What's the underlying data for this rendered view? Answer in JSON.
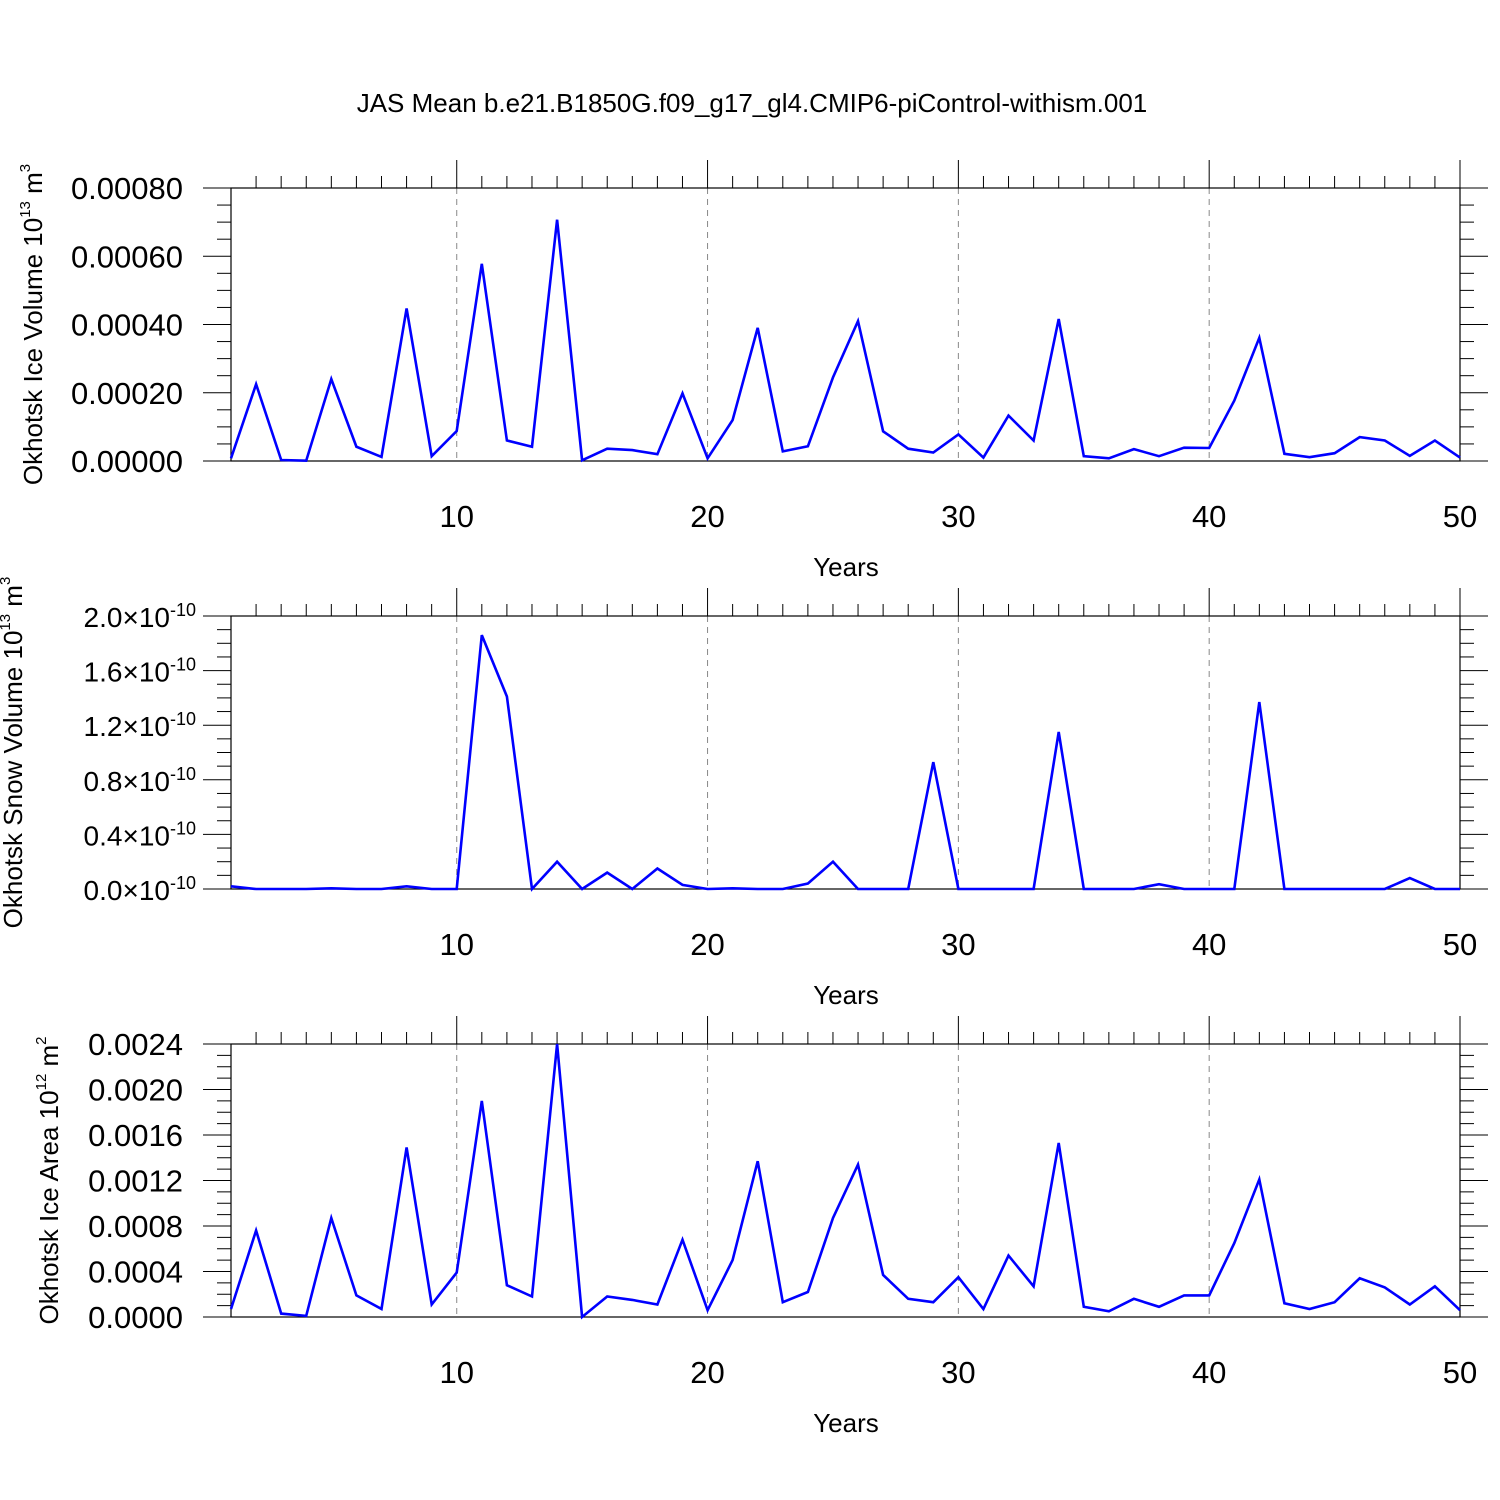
{
  "title": "JAS Mean b.e21.B1850G.f09_g17_gl4.CMIP6-piControl-withism.001",
  "colors": {
    "line": "#0000ff",
    "axis": "#000000",
    "grid": "#888888"
  },
  "chart_data": [
    {
      "type": "line",
      "xlabel": "Years",
      "ylabel_main": "Okhotsk Ice Volume 10",
      "ylabel_sup": "13",
      "ylabel_unit": " m",
      "ylabel_unit_sup": "3",
      "xlim": [
        1,
        50
      ],
      "ylim": [
        0,
        0.0008
      ],
      "x_ticks": [
        "10",
        "20",
        "30",
        "40",
        "50"
      ],
      "y_ticks": [
        "0.00000",
        "0.00020",
        "0.00040",
        "0.00060",
        "0.00080"
      ],
      "grid": "vertical dashed at major x ticks",
      "series": [
        {
          "x": [
            1,
            2,
            3,
            4,
            5,
            6,
            7,
            8,
            9,
            10,
            11,
            12,
            13,
            14,
            15,
            16,
            17,
            18,
            19,
            20,
            21,
            22,
            23,
            24,
            25,
            26,
            27,
            28,
            29,
            30,
            31,
            32,
            33,
            34,
            35,
            36,
            37,
            38,
            39,
            40,
            41,
            42,
            43,
            44,
            45,
            46,
            47,
            48,
            49,
            50
          ],
          "values": [
            8e-06,
            0.000225,
            3e-06,
            1e-06,
            0.00024,
            4.2e-05,
            1.2e-05,
            0.000447,
            1.4e-05,
            8.8e-05,
            0.000578,
            6e-05,
            4.2e-05,
            0.000707,
            2e-06,
            3.6e-05,
            3.2e-05,
            2e-05,
            0.000198,
            8e-06,
            0.00012,
            0.00039,
            2.8e-05,
            4.3e-05,
            0.000245,
            0.00041,
            8.7e-05,
            3.6e-05,
            2.5e-05,
            7.8e-05,
            1e-05,
            0.000133,
            6e-05,
            0.000416,
            1.4e-05,
            8e-06,
            3.5e-05,
            1.4e-05,
            3.9e-05,
            3.8e-05,
            0.000177,
            0.000361,
            2.1e-05,
            1.1e-05,
            2.3e-05,
            7e-05,
            6e-05,
            1.5e-05,
            6e-05,
            1e-05
          ]
        }
      ]
    },
    {
      "type": "line",
      "xlabel": "Years",
      "ylabel_main": "Okhotsk Snow Volume 10",
      "ylabel_sup": "13",
      "ylabel_unit": " m",
      "ylabel_unit_sup": "3",
      "xlim": [
        1,
        50
      ],
      "ylim": [
        0,
        2e-10
      ],
      "x_ticks": [
        "10",
        "20",
        "30",
        "40",
        "50"
      ],
      "y_ticks": [
        "0.0",
        "0.4",
        "0.8",
        "1.2",
        "1.6",
        "2.0"
      ],
      "y_tick_suffix": "×10",
      "y_tick_exponent": "-10",
      "grid": "vertical dashed at major x ticks",
      "series": [
        {
          "x": [
            1,
            2,
            3,
            4,
            5,
            6,
            7,
            8,
            9,
            10,
            11,
            12,
            13,
            14,
            15,
            16,
            17,
            18,
            19,
            20,
            21,
            22,
            23,
            24,
            25,
            26,
            27,
            28,
            29,
            30,
            31,
            32,
            33,
            34,
            35,
            36,
            37,
            38,
            39,
            40,
            41,
            42,
            43,
            44,
            45,
            46,
            47,
            48,
            49,
            50
          ],
          "values": [
            2e-12,
            0,
            0,
            0,
            5e-13,
            0,
            0,
            2e-12,
            0,
            0,
            1.86e-10,
            1.41e-10,
            0,
            2e-11,
            0,
            1.2e-11,
            0,
            1.5e-11,
            3e-12,
            0,
            5e-13,
            0,
            0,
            4e-12,
            2e-11,
            0,
            0,
            0,
            9.3e-11,
            0,
            0,
            0,
            0,
            1.15e-10,
            0,
            0,
            0,
            3.5e-12,
            0,
            0,
            0,
            1.37e-10,
            0,
            0,
            0,
            0,
            0,
            8e-12,
            0,
            0
          ]
        }
      ]
    },
    {
      "type": "line",
      "xlabel": "Years",
      "ylabel_main": "Okhotsk Ice Area 10",
      "ylabel_sup": "12",
      "ylabel_unit": " m",
      "ylabel_unit_sup": "2",
      "xlim": [
        1,
        50
      ],
      "ylim": [
        0,
        0.0024
      ],
      "x_ticks": [
        "10",
        "20",
        "30",
        "40",
        "50"
      ],
      "y_ticks": [
        "0.0000",
        "0.0004",
        "0.0008",
        "0.0012",
        "0.0016",
        "0.0020",
        "0.0024"
      ],
      "grid": "vertical dashed at major x ticks",
      "series": [
        {
          "x": [
            1,
            2,
            3,
            4,
            5,
            6,
            7,
            8,
            9,
            10,
            11,
            12,
            13,
            14,
            15,
            16,
            17,
            18,
            19,
            20,
            21,
            22,
            23,
            24,
            25,
            26,
            27,
            28,
            29,
            30,
            31,
            32,
            33,
            34,
            35,
            36,
            37,
            38,
            39,
            40,
            41,
            42,
            43,
            44,
            45,
            46,
            47,
            48,
            49,
            50
          ],
          "values": [
            7e-05,
            0.00076,
            3e-05,
            1e-05,
            0.00087,
            0.00019,
            7e-05,
            0.00149,
            0.00011,
            0.00039,
            0.0019,
            0.00028,
            0.00018,
            0.0024,
            0.0,
            0.00018,
            0.00015,
            0.00011,
            0.00068,
            6e-05,
            0.0005,
            0.00137,
            0.00013,
            0.00022,
            0.00087,
            0.00134,
            0.00037,
            0.00016,
            0.00013,
            0.00035,
            7e-05,
            0.00054,
            0.00027,
            0.00153,
            9e-05,
            5e-05,
            0.00016,
            9e-05,
            0.00019,
            0.00019,
            0.00065,
            0.00121,
            0.00012,
            7e-05,
            0.00013,
            0.00034,
            0.00026,
            0.00011,
            0.00027,
            6e-05
          ]
        }
      ]
    }
  ]
}
